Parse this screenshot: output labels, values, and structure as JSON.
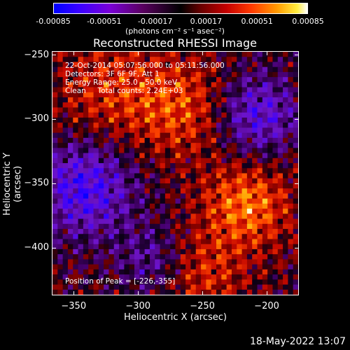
{
  "colorbar": {
    "ticks": [
      "-0.00085",
      "-0.00051",
      "-0.00017",
      "0.00017",
      "0.00051",
      "0.00085"
    ],
    "units": "(photons cm⁻² s⁻¹ asec⁻²)"
  },
  "title": "Reconstructed RHESSI Image",
  "info": {
    "line1": "22-Oct-2014 05:07:56.000 to 05:11:56.000",
    "line2": "Detectors: 3F 6F 9F, Att 1",
    "line3": "Energy Range: 25.0 - 50.0 keV",
    "line4": "Clean     Total counts: 2.24E+03",
    "peak": "Position of Peak = [-226,-355]"
  },
  "timestamp": "18-May-2022 13:07",
  "chart_data": {
    "type": "heatmap",
    "title": "Reconstructed RHESSI Image",
    "xlabel": "Heliocentric X (arcsec)",
    "ylabel": "Heliocentric Y (arcsec)",
    "xlim": [
      -367,
      -175
    ],
    "ylim": [
      -437,
      -247
    ],
    "xticks": [
      -350,
      -300,
      -250,
      -200
    ],
    "yticks": [
      -250,
      -300,
      -350,
      -400
    ],
    "xtick_labels": [
      "−350",
      "−300",
      "−250",
      "−200"
    ],
    "ytick_labels": [
      "−250",
      "−300",
      "−350",
      "−400"
    ],
    "value_range": [
      -0.00085,
      0.00085
    ],
    "peak_position": [
      -226,
      -355
    ],
    "colormap_stops": [
      "#0000ff",
      "#7a00d8",
      "#000000",
      "#c40000",
      "#ff9a00",
      "#ffffff"
    ]
  }
}
